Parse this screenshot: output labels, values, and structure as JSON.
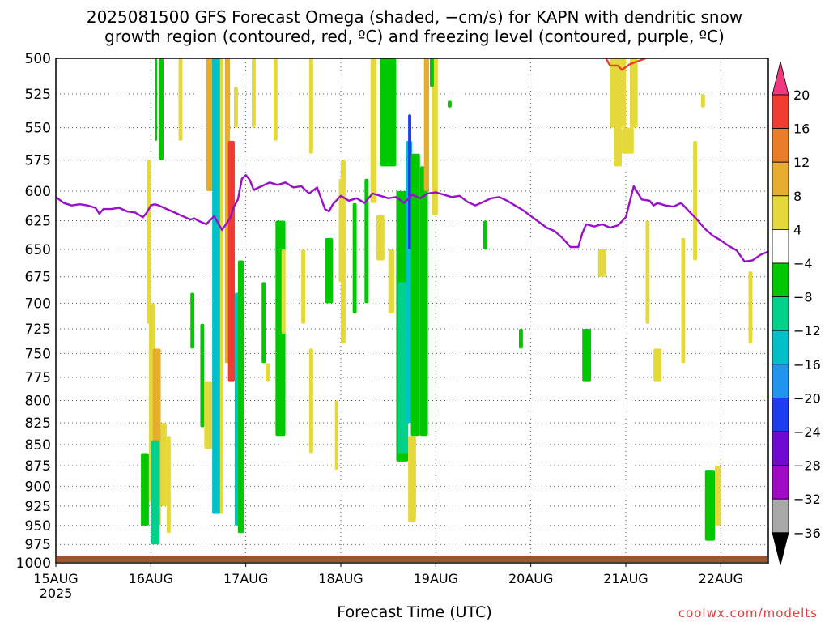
{
  "title": {
    "line1": "2025081500 GFS Forecast Omega (shaded, −cm/s) for KAPN with dendritic snow",
    "line2": "growth region (contoured, red, ºC) and freezing level (contoured, purple, ºC)"
  },
  "xlabel": "Forecast Time (UTC)",
  "credit": "coolwx.com/modelts",
  "chart_data": {
    "type": "heatmap",
    "x_unit": "hours since 2025-08-15 00 UTC",
    "xlim": [
      0,
      180
    ],
    "x_ticks": [
      {
        "x": 0,
        "label": "15AUG",
        "sub": "2025"
      },
      {
        "x": 24,
        "label": "16AUG"
      },
      {
        "x": 48,
        "label": "17AUG"
      },
      {
        "x": 72,
        "label": "18AUG"
      },
      {
        "x": 96,
        "label": "19AUG"
      },
      {
        "x": 120,
        "label": "20AUG"
      },
      {
        "x": 144,
        "label": "21AUG"
      },
      {
        "x": 168,
        "label": "22AUG"
      }
    ],
    "y_unit": "hPa",
    "ylim": [
      1000,
      500
    ],
    "y_scale": "log",
    "y_ticks": [
      500,
      525,
      550,
      575,
      600,
      625,
      650,
      675,
      700,
      725,
      750,
      775,
      800,
      825,
      850,
      875,
      900,
      925,
      950,
      975,
      1000
    ],
    "grid": true,
    "colorbar": {
      "labels": [
        "20",
        "16",
        "12",
        "8",
        "4",
        "−4",
        "−8",
        "−12",
        "−16",
        "−20",
        "−24",
        "−28",
        "−32",
        "−36"
      ],
      "colors": [
        "#f0377f",
        "#f03c32",
        "#ec7d28",
        "#e7ad2e",
        "#e5d83a",
        "#ffffff",
        "#00c800",
        "#00d28c",
        "#00c0c8",
        "#1e96f0",
        "#1e3cf0",
        "#6e0ad2",
        "#a00ac8",
        "#a8a8a8",
        "#000000"
      ]
    },
    "series": [
      {
        "name": "freezing level",
        "color": "#9910c9",
        "x": [
          0,
          2,
          4,
          6,
          8,
          10,
          11,
          12,
          14,
          16,
          18,
          20,
          22,
          23,
          24,
          25,
          26,
          28,
          30,
          32,
          34,
          35,
          36,
          38,
          40,
          41,
          42,
          44,
          45,
          46,
          47,
          48,
          49,
          50,
          52,
          54,
          56,
          58,
          60,
          62,
          64,
          66,
          68,
          69,
          70,
          72,
          74,
          76,
          78,
          80,
          82,
          84,
          86,
          88,
          90,
          92,
          94,
          96,
          98,
          100,
          102,
          104,
          106,
          108,
          110,
          112,
          114,
          116,
          118,
          120,
          122,
          124,
          126,
          128,
          130,
          132,
          133,
          134,
          136,
          138,
          140,
          142,
          144,
          146,
          148,
          150,
          151,
          152,
          154,
          156,
          158,
          160,
          162,
          164,
          166,
          168,
          170,
          172,
          174,
          176,
          178,
          180
        ],
        "y": [
          605,
          610,
          612,
          611,
          612,
          614,
          619,
          615,
          615,
          614,
          617,
          618,
          622,
          618,
          612,
          611,
          612,
          615,
          618,
          621,
          624,
          623,
          625,
          628,
          621,
          627,
          633,
          623,
          613,
          607,
          590,
          587,
          591,
          599,
          596,
          593,
          595,
          593,
          597,
          596,
          602,
          597,
          615,
          617,
          611,
          604,
          608,
          606,
          610,
          602,
          604,
          606,
          605,
          610,
          603,
          606,
          602,
          601,
          603,
          605,
          604,
          609,
          612,
          609,
          606,
          605,
          608,
          612,
          616,
          621,
          626,
          631,
          634,
          640,
          648,
          648,
          636,
          628,
          630,
          628,
          631,
          629,
          622,
          596,
          607,
          608,
          612,
          610,
          612,
          613,
          610,
          617,
          624,
          632,
          638,
          642,
          647,
          651,
          661,
          660,
          655,
          652
        ]
      },
      {
        "name": "dendritic snow growth region",
        "color": "#f03c32",
        "x": [
          139,
          140,
          142,
          143,
          144,
          145,
          146,
          147,
          148,
          149
        ],
        "y": [
          500,
          505,
          505,
          508,
          506,
          504,
          503,
          502,
          501,
          500
        ]
      }
    ],
    "omega_regions": [
      {
        "x": [
          23.5,
          25
        ],
        "y": [
          700,
          920
        ],
        "value": 6
      },
      {
        "x": [
          24.5,
          26.5
        ],
        "y": [
          745,
          950
        ],
        "value": 9
      },
      {
        "x": [
          26.5,
          28
        ],
        "y": [
          825,
          925
        ],
        "value": 5
      },
      {
        "x": [
          28,
          29
        ],
        "y": [
          840,
          960
        ],
        "value": 5
      },
      {
        "x": [
          23,
          24
        ],
        "y": [
          575,
          720
        ],
        "value": 5
      },
      {
        "x": [
          21.5,
          23.5
        ],
        "y": [
          860,
          950
        ],
        "value": -8
      },
      {
        "x": [
          24,
          26.2
        ],
        "y": [
          845,
          975
        ],
        "value": -9
      },
      {
        "x": [
          25,
          25.6
        ],
        "y": [
          500,
          560
        ],
        "value": -7
      },
      {
        "x": [
          26,
          27.2
        ],
        "y": [
          500,
          575
        ],
        "value": -6
      },
      {
        "x": [
          31,
          32
        ],
        "y": [
          500,
          560
        ],
        "value": 5
      },
      {
        "x": [
          34,
          35
        ],
        "y": [
          690,
          745
        ],
        "value": -6
      },
      {
        "x": [
          36.5,
          37.5
        ],
        "y": [
          720,
          830
        ],
        "value": -6
      },
      {
        "x": [
          38,
          40
        ],
        "y": [
          500,
          600
        ],
        "value": 8
      },
      {
        "x": [
          37.5,
          39.5
        ],
        "y": [
          780,
          855
        ],
        "value": 6
      },
      {
        "x": [
          39.5,
          41.5
        ],
        "y": [
          500,
          935
        ],
        "value": -14
      },
      {
        "x": [
          41.5,
          42.2
        ],
        "y": [
          500,
          935
        ],
        "value": 6
      },
      {
        "x": [
          42.7,
          44
        ],
        "y": [
          500,
          760
        ],
        "value": 9
      },
      {
        "x": [
          43.5,
          45.2
        ],
        "y": [
          560,
          780
        ],
        "value": 17
      },
      {
        "x": [
          44.2,
          45.2
        ],
        "y": [
          650,
          760
        ],
        "value": 19
      },
      {
        "x": [
          45,
          46
        ],
        "y": [
          520,
          550
        ],
        "value": 5
      },
      {
        "x": [
          45.2,
          46.8
        ],
        "y": [
          690,
          950
        ],
        "value": -14
      },
      {
        "x": [
          46,
          47.5
        ],
        "y": [
          660,
          960
        ],
        "value": -8
      },
      {
        "x": [
          49.5,
          50.5
        ],
        "y": [
          500,
          550
        ],
        "value": 5
      },
      {
        "x": [
          52,
          53
        ],
        "y": [
          680,
          760
        ],
        "value": -6
      },
      {
        "x": [
          53,
          54
        ],
        "y": [
          760,
          780
        ],
        "value": 4
      },
      {
        "x": [
          55,
          56
        ],
        "y": [
          500,
          560
        ],
        "value": 5
      },
      {
        "x": [
          55.5,
          58
        ],
        "y": [
          625,
          840
        ],
        "value": -7
      },
      {
        "x": [
          57,
          58
        ],
        "y": [
          650,
          730
        ],
        "value": 4
      },
      {
        "x": [
          64,
          65
        ],
        "y": [
          745,
          860
        ],
        "value": 5
      },
      {
        "x": [
          62,
          63
        ],
        "y": [
          650,
          720
        ],
        "value": 5
      },
      {
        "x": [
          64,
          65
        ],
        "y": [
          500,
          570
        ],
        "value": 5
      },
      {
        "x": [
          68,
          70
        ],
        "y": [
          640,
          700
        ],
        "value": -7
      },
      {
        "x": [
          70.5,
          71.3
        ],
        "y": [
          800,
          880
        ],
        "value": 5
      },
      {
        "x": [
          71.5,
          72.5
        ],
        "y": [
          590,
          680
        ],
        "value": 5
      },
      {
        "x": [
          72,
          73.2
        ],
        "y": [
          575,
          740
        ],
        "value": 5
      },
      {
        "x": [
          75,
          76
        ],
        "y": [
          610,
          710
        ],
        "value": -7
      },
      {
        "x": [
          78,
          79
        ],
        "y": [
          590,
          700
        ],
        "value": -7
      },
      {
        "x": [
          79.5,
          81
        ],
        "y": [
          500,
          610
        ],
        "value": 5
      },
      {
        "x": [
          82,
          86
        ],
        "y": [
          500,
          580
        ],
        "value": -7
      },
      {
        "x": [
          81,
          83
        ],
        "y": [
          620,
          660
        ],
        "value": 5
      },
      {
        "x": [
          84,
          85.5
        ],
        "y": [
          650,
          710
        ],
        "value": 5
      },
      {
        "x": [
          86,
          89
        ],
        "y": [
          600,
          870
        ],
        "value": -8
      },
      {
        "x": [
          86.5,
          89
        ],
        "y": [
          680,
          860
        ],
        "value": -12
      },
      {
        "x": [
          88.5,
          90
        ],
        "y": [
          560,
          825
        ],
        "value": -16
      },
      {
        "x": [
          89,
          89.8
        ],
        "y": [
          540,
          650
        ],
        "value": -24
      },
      {
        "x": [
          89.7,
          92
        ],
        "y": [
          570,
          840
        ],
        "value": -8
      },
      {
        "x": [
          92,
          94
        ],
        "y": [
          580,
          840
        ],
        "value": -7
      },
      {
        "x": [
          93,
          94.3
        ],
        "y": [
          500,
          600
        ],
        "value": 8
      },
      {
        "x": [
          95,
          96.5
        ],
        "y": [
          500,
          620
        ],
        "value": 5
      },
      {
        "x": [
          94.5,
          95.5
        ],
        "y": [
          500,
          520
        ],
        "value": -6
      },
      {
        "x": [
          89,
          91
        ],
        "y": [
          840,
          945
        ],
        "value": 5
      },
      {
        "x": [
          99,
          100
        ],
        "y": [
          530,
          535
        ],
        "value": -6
      },
      {
        "x": [
          117,
          118
        ],
        "y": [
          725,
          745
        ],
        "value": -6
      },
      {
        "x": [
          108,
          109
        ],
        "y": [
          625,
          650
        ],
        "value": -6
      },
      {
        "x": [
          140,
          144
        ],
        "y": [
          500,
          550
        ],
        "value": 5
      },
      {
        "x": [
          141,
          143
        ],
        "y": [
          550,
          580
        ],
        "value": 5
      },
      {
        "x": [
          143,
          146
        ],
        "y": [
          550,
          570
        ],
        "value": 5
      },
      {
        "x": [
          145,
          147
        ],
        "y": [
          500,
          550
        ],
        "value": 5
      },
      {
        "x": [
          133,
          135.2
        ],
        "y": [
          725,
          780
        ],
        "value": -8
      },
      {
        "x": [
          137,
          139
        ],
        "y": [
          650,
          675
        ],
        "value": 5
      },
      {
        "x": [
          149,
          150
        ],
        "y": [
          625,
          720
        ],
        "value": 5
      },
      {
        "x": [
          151,
          153
        ],
        "y": [
          745,
          780
        ],
        "value": 5
      },
      {
        "x": [
          158,
          159
        ],
        "y": [
          640,
          760
        ],
        "value": 5
      },
      {
        "x": [
          161,
          162
        ],
        "y": [
          560,
          660
        ],
        "value": 5
      },
      {
        "x": [
          163,
          164
        ],
        "y": [
          525,
          535
        ],
        "value": 5
      },
      {
        "x": [
          164,
          166.5
        ],
        "y": [
          880,
          970
        ],
        "value": -8
      },
      {
        "x": [
          166.5,
          168
        ],
        "y": [
          875,
          950
        ],
        "value": 5
      },
      {
        "x": [
          175,
          176
        ],
        "y": [
          670,
          740
        ],
        "value": 5
      }
    ]
  }
}
